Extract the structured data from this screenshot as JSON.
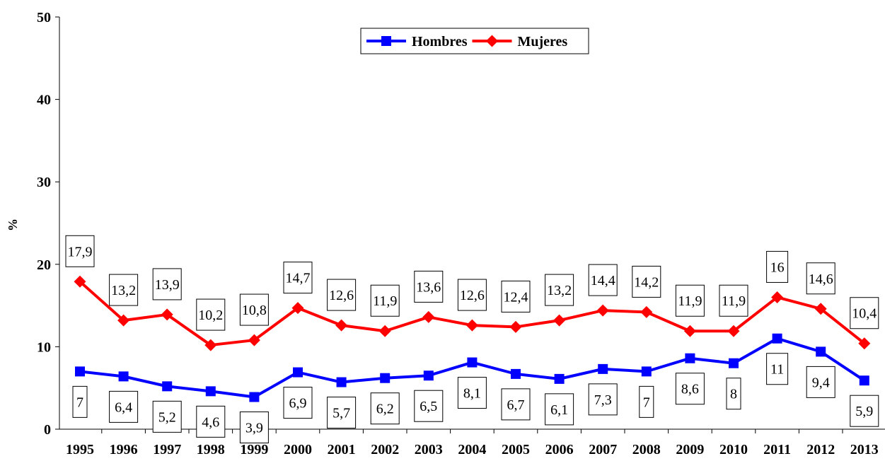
{
  "chart_data": {
    "type": "line",
    "title": "",
    "xlabel": "",
    "ylabel": "%",
    "ylim": [
      0,
      50
    ],
    "yticks": [
      0,
      10,
      20,
      30,
      40,
      50
    ],
    "grid": false,
    "legend_position": "top-center",
    "categories": [
      "1995",
      "1996",
      "1997",
      "1998",
      "1999",
      "2000",
      "2001",
      "2002",
      "2003",
      "2004",
      "2005",
      "2006",
      "2007",
      "2008",
      "2009",
      "2010",
      "2011",
      "2012",
      "2013"
    ],
    "series": [
      {
        "name": "Hombres",
        "color": "#0000ff",
        "marker": "square",
        "values": [
          7,
          6.4,
          5.2,
          4.6,
          3.9,
          6.9,
          5.7,
          6.2,
          6.5,
          8.1,
          6.7,
          6.1,
          7.3,
          7,
          8.6,
          8,
          11,
          9.4,
          5.9
        ],
        "labels": [
          "7",
          "6,4",
          "5,2",
          "4,6",
          "3,9",
          "6,9",
          "5,7",
          "6,2",
          "6,5",
          "8,1",
          "6,7",
          "6,1",
          "7,3",
          "7",
          "8,6",
          "8",
          "11",
          "9,4",
          "5,9"
        ]
      },
      {
        "name": "Mujeres",
        "color": "#ff0000",
        "marker": "diamond",
        "values": [
          17.9,
          13.2,
          13.9,
          10.2,
          10.8,
          14.7,
          12.6,
          11.9,
          13.6,
          12.6,
          12.4,
          13.2,
          14.4,
          14.2,
          11.9,
          11.9,
          16,
          14.6,
          10.4
        ],
        "labels": [
          "17,9",
          "13,2",
          "13,9",
          "10,2",
          "10,8",
          "14,7",
          "12,6",
          "11,9",
          "13,6",
          "12,6",
          "12,4",
          "13,2",
          "14,4",
          "14,2",
          "11,9",
          "11,9",
          "16",
          "14,6",
          "10,4"
        ]
      }
    ]
  }
}
